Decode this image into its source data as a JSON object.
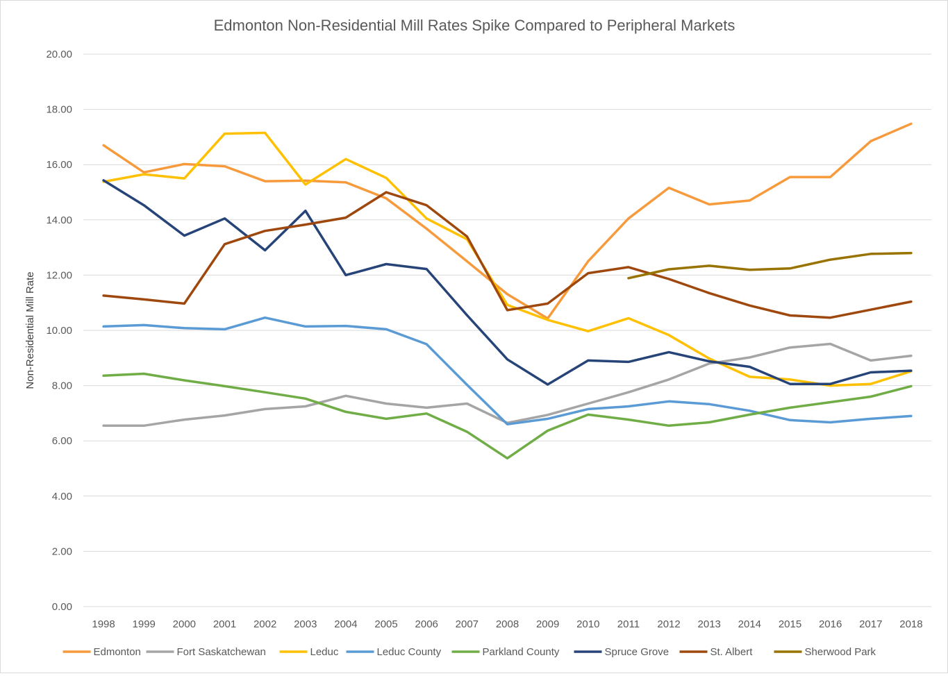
{
  "chart_data": {
    "type": "line",
    "title": "Edmonton Non-Residential Mill Rates Spike Compared to Peripheral Markets",
    "xlabel": "",
    "ylabel": "Non-Residential Mill Rate",
    "ylim": [
      0,
      20
    ],
    "yticks": [
      "0.00",
      "2.00",
      "4.00",
      "6.00",
      "8.00",
      "10.00",
      "12.00",
      "14.00",
      "16.00",
      "18.00",
      "20.00"
    ],
    "categories": [
      "1998",
      "1999",
      "2000",
      "2001",
      "2002",
      "2003",
      "2004",
      "2005",
      "2006",
      "2007",
      "2008",
      "2009",
      "2010",
      "2011",
      "2012",
      "2013",
      "2014",
      "2015",
      "2016",
      "2017",
      "2018"
    ],
    "grid": "horizontal",
    "legend": "bottom",
    "series": [
      {
        "name": "Edmonton",
        "color": "#f79a3c",
        "values": [
          16.7,
          15.72,
          16.02,
          15.94,
          15.4,
          15.42,
          15.36,
          14.78,
          13.68,
          12.5,
          11.31,
          10.43,
          12.5,
          14.05,
          15.16,
          14.56,
          14.7,
          15.55,
          15.55,
          16.85,
          17.48
        ]
      },
      {
        "name": "Fort Saskatchewan",
        "color": "#a5a5a5",
        "values": [
          6.55,
          6.55,
          6.77,
          6.92,
          7.15,
          7.25,
          7.63,
          7.35,
          7.2,
          7.35,
          6.65,
          6.94,
          7.35,
          7.76,
          8.22,
          8.8,
          9.02,
          9.38,
          9.51,
          8.91,
          9.08
        ]
      },
      {
        "name": "Leduc",
        "color": "#ffc000",
        "values": [
          15.38,
          15.65,
          15.5,
          17.12,
          17.15,
          15.28,
          16.2,
          15.52,
          14.05,
          13.3,
          10.92,
          10.38,
          9.97,
          10.44,
          9.83,
          8.98,
          8.32,
          8.22,
          8.0,
          8.06,
          8.52
        ]
      },
      {
        "name": "Leduc County",
        "color": "#5b9bd5",
        "values": [
          10.14,
          10.19,
          10.08,
          10.04,
          10.46,
          10.14,
          10.16,
          10.04,
          9.5,
          8.03,
          6.6,
          6.8,
          7.15,
          7.25,
          7.43,
          7.33,
          7.09,
          6.75,
          6.67,
          6.8,
          6.9
        ]
      },
      {
        "name": "Parkland County",
        "color": "#70ad47",
        "values": [
          8.36,
          8.43,
          8.19,
          7.98,
          7.76,
          7.53,
          7.05,
          6.8,
          6.99,
          6.33,
          5.37,
          6.37,
          6.95,
          6.77,
          6.55,
          6.67,
          6.95,
          7.2,
          7.4,
          7.6,
          7.98
        ]
      },
      {
        "name": "Spruce Grove",
        "color": "#264478",
        "values": [
          15.43,
          14.53,
          13.43,
          14.05,
          12.9,
          14.33,
          12.0,
          12.4,
          12.22,
          10.55,
          8.95,
          8.04,
          8.91,
          8.86,
          9.21,
          8.88,
          8.68,
          8.06,
          8.06,
          8.48,
          8.54
        ]
      },
      {
        "name": "St. Albert",
        "color": "#9e480e",
        "values": [
          11.26,
          11.12,
          10.97,
          13.12,
          13.6,
          13.83,
          14.08,
          15.0,
          14.53,
          13.4,
          10.73,
          10.97,
          12.07,
          12.29,
          11.86,
          11.35,
          10.9,
          10.54,
          10.46,
          10.75,
          11.04
        ]
      },
      {
        "name": "Sherwood Park",
        "color": "#997300",
        "values": [
          null,
          null,
          null,
          null,
          null,
          null,
          null,
          null,
          null,
          null,
          null,
          null,
          null,
          11.89,
          12.21,
          12.34,
          12.19,
          12.24,
          12.56,
          12.77,
          12.8
        ]
      }
    ]
  }
}
